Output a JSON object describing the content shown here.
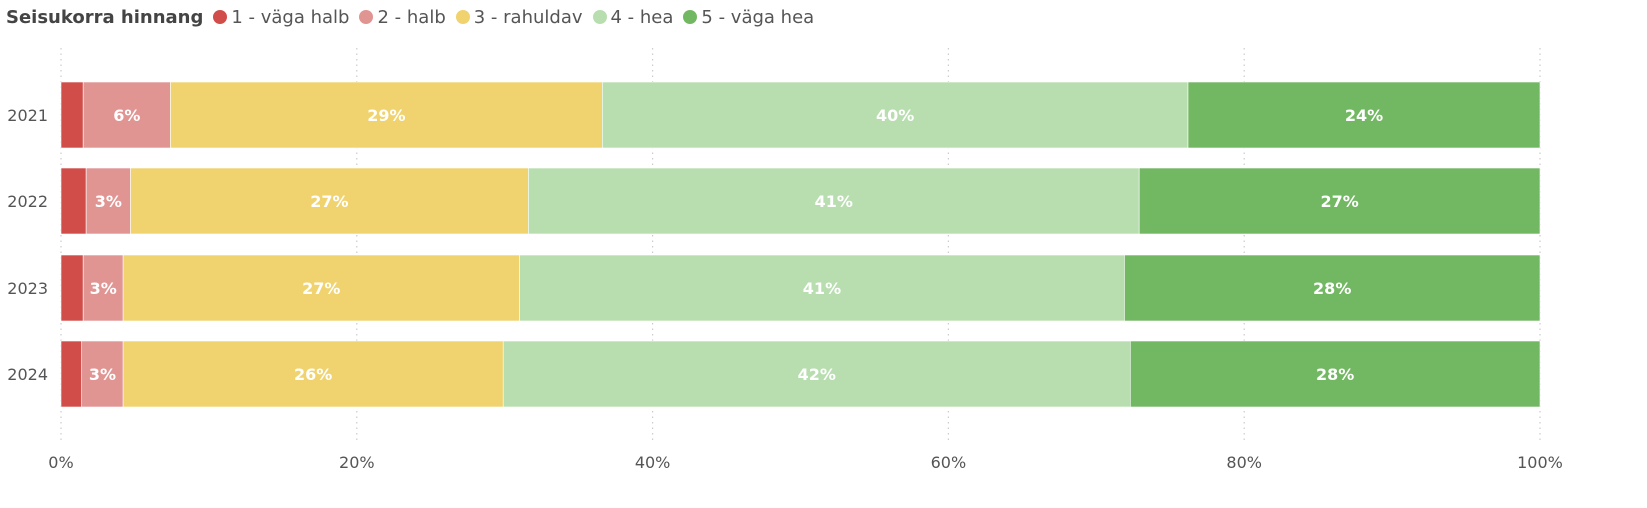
{
  "legend": {
    "title": "Seisukorra hinnang"
  },
  "colors": {
    "very_poor": "#d04d4a",
    "poor": "#e09593",
    "satisfactory": "#f0d36f",
    "good": "#b8deb0",
    "very_good": "#72b762",
    "gridline": "#cccccc",
    "text": "#555555"
  },
  "chart_data": {
    "type": "bar",
    "orientation": "horizontal",
    "stacked": "100%",
    "categories": [
      "2021",
      "2022",
      "2023",
      "2024"
    ],
    "series": [
      {
        "name": "1 - väga halb",
        "color": "#d04d4a",
        "values": [
          1.5,
          1.7,
          1.5,
          1.4
        ],
        "labels": [
          "",
          "",
          "",
          ""
        ]
      },
      {
        "name": "2 - halb",
        "color": "#e09593",
        "values": [
          5.9,
          3.0,
          2.7,
          2.8
        ],
        "labels": [
          "6%",
          "3%",
          "3%",
          "3%"
        ]
      },
      {
        "name": "3 - rahuldav",
        "color": "#f0d36f",
        "values": [
          29.2,
          26.9,
          26.8,
          25.7
        ],
        "labels": [
          "29%",
          "27%",
          "27%",
          "26%"
        ]
      },
      {
        "name": "4 - hea",
        "color": "#b8deb0",
        "values": [
          39.6,
          41.3,
          40.9,
          42.4
        ],
        "labels": [
          "40%",
          "41%",
          "41%",
          "42%"
        ]
      },
      {
        "name": "5 - väga hea",
        "color": "#72b762",
        "values": [
          23.8,
          27.1,
          28.1,
          27.7
        ],
        "labels": [
          "24%",
          "27%",
          "28%",
          "28%"
        ]
      }
    ],
    "xlim": [
      0,
      100
    ],
    "x_ticks": [
      0,
      20,
      40,
      60,
      80,
      100
    ],
    "x_tick_labels": [
      "0%",
      "20%",
      "40%",
      "60%",
      "80%",
      "100%"
    ],
    "grid": "vertical-dotted",
    "legend_position": "top-left"
  }
}
